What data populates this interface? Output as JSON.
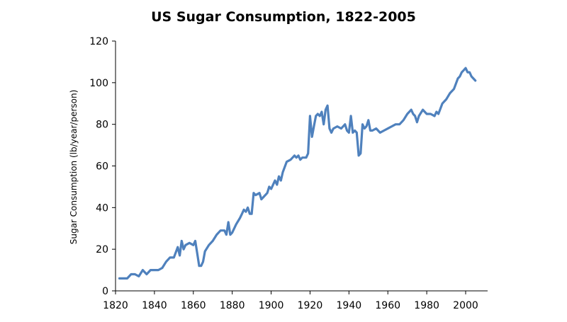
{
  "chart_data": {
    "type": "line",
    "title": "US Sugar Consumption, 1822-2005",
    "xlabel": "",
    "ylabel": "Sugar Consumption (lb/year/person)",
    "xlim": [
      1820,
      2005
    ],
    "ylim": [
      0,
      120
    ],
    "x_ticks": [
      "1820",
      "1840",
      "1860",
      "1880",
      "1900",
      "1920",
      "1940",
      "1960",
      "1980",
      "2000"
    ],
    "y_ticks": [
      "0",
      "20",
      "40",
      "60",
      "80",
      "100",
      "120"
    ],
    "grid": false,
    "legend": "none",
    "line_color": "#4f81bd",
    "series": [
      {
        "x": [
          1822,
          1824,
          1826,
          1828,
          1830,
          1832,
          1834,
          1836,
          1838,
          1840,
          1842,
          1844,
          1846,
          1848,
          1850,
          1852,
          1853,
          1854,
          1855,
          1856,
          1858,
          1860,
          1861,
          1862,
          1863,
          1864,
          1865,
          1866,
          1868,
          1870,
          1872,
          1874,
          1876,
          1877,
          1878,
          1879,
          1880,
          1882,
          1884,
          1885,
          1886,
          1887,
          1888,
          1889,
          1890,
          1891,
          1892,
          1894,
          1895,
          1896,
          1898,
          1899,
          1900,
          1902,
          1903,
          1904,
          1905,
          1906,
          1908,
          1910,
          1912,
          1913,
          1914,
          1915,
          1916,
          1918,
          1919,
          1920,
          1921,
          1922,
          1923,
          1924,
          1925,
          1926,
          1927,
          1928,
          1929,
          1930,
          1931,
          1932,
          1934,
          1936,
          1938,
          1939,
          1940,
          1941,
          1942,
          1943,
          1944,
          1945,
          1946,
          1947,
          1948,
          1949,
          1950,
          1951,
          1952,
          1954,
          1956,
          1958,
          1960,
          1962,
          1964,
          1966,
          1968,
          1970,
          1972,
          1973,
          1974,
          1975,
          1976,
          1978,
          1980,
          1981,
          1982,
          1984,
          1985,
          1986,
          1988,
          1990,
          1992,
          1994,
          1996,
          1997,
          1998,
          1999,
          2000,
          2001,
          2002,
          2003,
          2005
        ],
        "y": [
          6,
          6,
          6,
          8,
          8,
          7,
          10,
          8,
          10,
          10,
          10,
          11,
          14,
          16,
          16,
          21,
          17,
          24,
          20,
          22,
          23,
          22,
          24,
          18,
          12,
          12,
          14,
          19,
          22,
          24,
          27,
          29,
          29,
          27,
          33,
          27,
          28,
          32,
          35,
          37,
          39,
          38,
          40,
          37,
          37,
          47,
          46,
          47,
          44,
          45,
          47,
          50,
          49,
          53,
          51,
          55,
          53,
          57,
          62,
          63,
          65,
          64,
          65,
          63,
          64,
          64,
          66,
          84,
          74,
          79,
          84,
          85,
          84,
          86,
          80,
          87,
          89,
          78,
          76,
          78,
          79,
          78,
          80,
          77,
          76,
          84,
          76,
          77,
          76,
          65,
          66,
          80,
          78,
          79,
          82,
          77,
          77,
          78,
          76,
          77,
          78,
          79,
          80,
          80,
          82,
          85,
          87,
          85,
          84,
          81,
          84,
          87,
          85,
          85,
          85,
          84,
          86,
          85,
          90,
          92,
          95,
          97,
          102,
          103,
          105,
          106,
          107,
          105,
          105,
          103,
          101
        ]
      }
    ]
  }
}
